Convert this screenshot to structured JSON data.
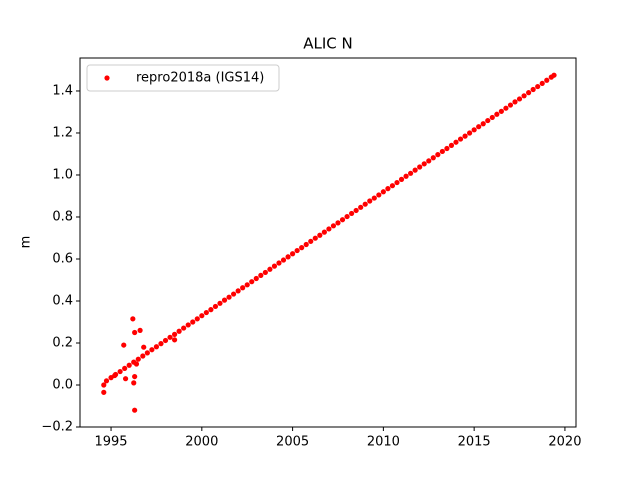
{
  "chart_data": {
    "type": "scatter",
    "title": "ALIC N",
    "y_label": "m",
    "xlim": [
      1993.29,
      2020.61
    ],
    "ylim": [
      -0.2,
      1.557
    ],
    "xticks": [
      1995,
      2000,
      2005,
      2010,
      2015,
      2020
    ],
    "yticks": [
      {
        "value": -0.2,
        "label": "−0.2"
      },
      {
        "value": 0,
        "label": "0.0"
      },
      0.2,
      0.4,
      0.6,
      0.8,
      {
        "value": 1,
        "label": "1.0"
      },
      1.2,
      1.4
    ],
    "legend": "upper left",
    "grid": false,
    "series": [
      {
        "name": "repro2018a (IGS14)",
        "color": "#ff0000",
        "x": [
          1994.75,
          1995,
          1995.25,
          1995.5,
          1995.75,
          1996,
          1996.25,
          1996.5,
          1996.75,
          1997,
          1997.25,
          1997.5,
          1997.75,
          1998,
          1998.25,
          1998.5,
          1998.75,
          1999,
          1999.25,
          1999.5,
          1999.75,
          2000,
          2000.25,
          2000.5,
          2000.75,
          2001,
          2001.25,
          2001.5,
          2001.75,
          2002,
          2002.25,
          2002.5,
          2002.75,
          2003,
          2003.25,
          2003.5,
          2003.75,
          2004,
          2004.25,
          2004.5,
          2004.75,
          2005,
          2005.25,
          2005.5,
          2005.75,
          2006,
          2006.25,
          2006.5,
          2006.75,
          2007,
          2007.25,
          2007.5,
          2007.75,
          2008,
          2008.25,
          2008.5,
          2008.75,
          2009,
          2009.25,
          2009.5,
          2009.75,
          2010,
          2010.25,
          2010.5,
          2010.75,
          2011,
          2011.25,
          2011.5,
          2011.75,
          2012,
          2012.25,
          2012.5,
          2012.75,
          2013,
          2013.25,
          2013.5,
          2013.75,
          2014,
          2014.25,
          2014.5,
          2014.75,
          2015,
          2015.25,
          2015.5,
          2015.75,
          2016,
          2016.25,
          2016.5,
          2016.75,
          2017,
          2017.25,
          2017.5,
          2017.75,
          2018,
          2018.25,
          2018.5,
          2018.75,
          2019,
          2019.25,
          2019.4,
          1994.6,
          1994.6,
          1995.7,
          1995.8,
          1996.2,
          1996.3,
          1996.25,
          1996.3,
          1996.3,
          1996.6,
          1996.8,
          1998.5,
          1996.4,
          1995.2
        ],
        "values": [
          0.02,
          0.035,
          0.05,
          0.064,
          0.079,
          0.094,
          0.109,
          0.123,
          0.138,
          0.153,
          0.168,
          0.182,
          0.197,
          0.212,
          0.227,
          0.241,
          0.256,
          0.271,
          0.286,
          0.3,
          0.315,
          0.33,
          0.345,
          0.359,
          0.374,
          0.389,
          0.404,
          0.418,
          0.433,
          0.448,
          0.463,
          0.477,
          0.492,
          0.507,
          0.522,
          0.536,
          0.551,
          0.566,
          0.581,
          0.595,
          0.61,
          0.625,
          0.64,
          0.654,
          0.669,
          0.684,
          0.699,
          0.713,
          0.728,
          0.743,
          0.758,
          0.772,
          0.787,
          0.802,
          0.817,
          0.831,
          0.846,
          0.861,
          0.876,
          0.89,
          0.905,
          0.92,
          0.935,
          0.949,
          0.964,
          0.979,
          0.994,
          1.008,
          1.023,
          1.038,
          1.053,
          1.067,
          1.082,
          1.097,
          1.112,
          1.126,
          1.141,
          1.156,
          1.171,
          1.185,
          1.2,
          1.215,
          1.23,
          1.244,
          1.259,
          1.274,
          1.289,
          1.303,
          1.318,
          1.333,
          1.348,
          1.362,
          1.377,
          1.392,
          1.407,
          1.421,
          1.436,
          1.451,
          1.466,
          1.475,
          -0.035,
          0,
          0.19,
          0.03,
          0.315,
          0.25,
          0.01,
          0.04,
          -0.12,
          0.26,
          0.18,
          0.215,
          0.1,
          0.045
        ]
      }
    ]
  }
}
